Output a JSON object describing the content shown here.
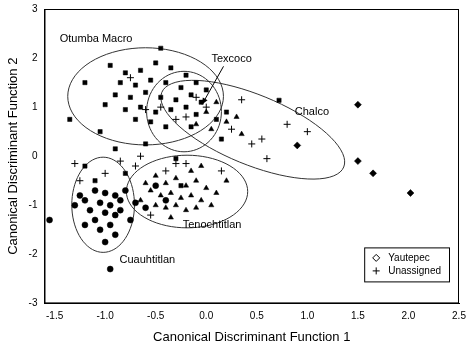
{
  "chart_data": {
    "type": "scatter",
    "x_label": "Canonical Discriminant Function 1",
    "y_label": "Canonical Discriminant Function 2",
    "xlim": [
      -1.6,
      2.5
    ],
    "ylim": [
      -3,
      3
    ],
    "xticks": [
      -1.5,
      {
        "value": -1,
        "label": "-1.0"
      },
      -0.5,
      {
        "value": 0,
        "label": "0.0"
      },
      0.5,
      {
        "value": 1,
        "label": "1.0"
      },
      1.5,
      {
        "value": 2,
        "label": "2.0"
      },
      2.5
    ],
    "yticks": [
      -3,
      -2,
      -1,
      0,
      1,
      2,
      3
    ],
    "grid": false,
    "legend": "lower right",
    "series": [
      {
        "marker": "square",
        "color": "#000000",
        "values": [
          [
            -0.95,
            1.85
          ],
          [
            -0.8,
            1.7
          ],
          [
            -0.65,
            1.75
          ],
          [
            -0.5,
            1.9
          ],
          [
            -0.35,
            1.8
          ],
          [
            -0.2,
            1.65
          ],
          [
            -0.85,
            1.5
          ],
          [
            -0.7,
            1.45
          ],
          [
            -0.55,
            1.55
          ],
          [
            -0.4,
            1.5
          ],
          [
            -0.25,
            1.4
          ],
          [
            -0.1,
            1.5
          ],
          [
            0.0,
            1.35
          ],
          [
            -0.9,
            1.25
          ],
          [
            -0.75,
            1.2
          ],
          [
            -0.6,
            1.3
          ],
          [
            -0.45,
            1.2
          ],
          [
            -0.3,
            1.15
          ],
          [
            -0.15,
            1.25
          ],
          [
            -0.05,
            1.1
          ],
          [
            -1.0,
            1.05
          ],
          [
            -0.8,
            0.95
          ],
          [
            -0.65,
            1.0
          ],
          [
            -0.5,
            0.9
          ],
          [
            -0.35,
            0.95
          ],
          [
            -0.2,
            1.0
          ],
          [
            -0.1,
            0.85
          ],
          [
            -0.7,
            0.75
          ],
          [
            -0.55,
            0.7
          ],
          [
            -0.4,
            0.6
          ],
          [
            -0.15,
            0.6
          ],
          [
            0.1,
            0.75
          ],
          [
            0.2,
            0.9
          ],
          [
            -1.35,
            0.75
          ],
          [
            -1.05,
            0.5
          ],
          [
            -0.9,
            0.15
          ],
          [
            -1.2,
            -0.2
          ],
          [
            -0.6,
            0.25
          ],
          [
            -0.3,
            -0.05
          ],
          [
            -1.1,
            -0.5
          ],
          [
            -0.8,
            -0.35
          ],
          [
            0.72,
            1.14
          ],
          [
            -1.2,
            1.5
          ],
          [
            -0.45,
            2.2
          ],
          [
            0.15,
            0.35
          ],
          [
            -0.9,
            -1.2
          ],
          [
            -0.25,
            -0.6
          ]
        ]
      },
      {
        "marker": "triangle",
        "color": "#000000",
        "values": [
          [
            -0.5,
            -0.4
          ],
          [
            -0.4,
            -0.55
          ],
          [
            -0.3,
            -0.45
          ],
          [
            -0.2,
            -0.6
          ],
          [
            -0.1,
            -0.5
          ],
          [
            0.0,
            -0.65
          ],
          [
            0.1,
            -0.75
          ],
          [
            -0.55,
            -0.7
          ],
          [
            -0.45,
            -0.8
          ],
          [
            -0.35,
            -0.75
          ],
          [
            -0.25,
            -0.85
          ],
          [
            -0.15,
            -0.8
          ],
          [
            -0.05,
            -0.9
          ],
          [
            -0.5,
            -1.0
          ],
          [
            -0.4,
            -1.05
          ],
          [
            -0.3,
            -1.0
          ],
          [
            -0.2,
            -1.1
          ],
          [
            -0.1,
            -1.05
          ],
          [
            0.05,
            -1.0
          ],
          [
            -0.35,
            -1.25
          ],
          [
            -0.6,
            -0.55
          ],
          [
            -0.65,
            -0.9
          ],
          [
            0.2,
            -0.5
          ],
          [
            -0.15,
            -0.3
          ],
          [
            -0.05,
            -0.2
          ],
          [
            0.0,
            0.9
          ],
          [
            0.1,
            1.1
          ],
          [
            0.2,
            0.7
          ],
          [
            0.3,
            0.8
          ],
          [
            -0.1,
            0.65
          ],
          [
            0.05,
            0.55
          ],
          [
            0.35,
            0.45
          ]
        ]
      },
      {
        "marker": "circle",
        "color": "#000000",
        "values": [
          [
            -1.1,
            -0.7
          ],
          [
            -1.0,
            -0.75
          ],
          [
            -0.9,
            -0.8
          ],
          [
            -1.2,
            -0.9
          ],
          [
            -1.05,
            -0.95
          ],
          [
            -0.95,
            -1.0
          ],
          [
            -0.85,
            -0.9
          ],
          [
            -1.15,
            -1.1
          ],
          [
            -1.0,
            -1.15
          ],
          [
            -0.9,
            -1.2
          ],
          [
            -1.1,
            -1.3
          ],
          [
            -0.95,
            -1.4
          ],
          [
            -0.85,
            -1.1
          ],
          [
            -1.05,
            -1.5
          ],
          [
            -0.9,
            -1.6
          ],
          [
            -1.0,
            -1.75
          ],
          [
            -1.25,
            -0.8
          ],
          [
            -0.8,
            -0.7
          ],
          [
            -1.3,
            -1.0
          ],
          [
            -0.75,
            -1.3
          ],
          [
            -1.55,
            -1.3
          ],
          [
            -0.95,
            -2.3
          ],
          [
            -1.2,
            -1.4
          ],
          [
            -0.7,
            -0.95
          ],
          [
            -0.6,
            -1.05
          ],
          [
            -0.5,
            -0.6
          ],
          [
            -0.4,
            -0.9
          ]
        ]
      },
      {
        "name": "Yautepec",
        "marker": "diamond",
        "color": "#000000",
        "values": [
          [
            1.5,
            1.05
          ],
          [
            1.5,
            -0.1
          ],
          [
            1.65,
            -0.35
          ],
          [
            2.02,
            -0.75
          ],
          [
            0.9,
            0.22
          ]
        ]
      },
      {
        "name": "Unassigned",
        "marker": "plus",
        "color": "#000000",
        "values": [
          [
            -0.75,
            1.6
          ],
          [
            -0.6,
            0.95
          ],
          [
            -0.45,
            1.0
          ],
          [
            -0.3,
            0.75
          ],
          [
            -0.1,
            1.2
          ],
          [
            0.0,
            1.0
          ],
          [
            -0.2,
            0.8
          ],
          [
            0.35,
            1.15
          ],
          [
            0.55,
            0.35
          ],
          [
            0.6,
            -0.05
          ],
          [
            0.45,
            0.25
          ],
          [
            1.0,
            0.5
          ],
          [
            0.8,
            0.65
          ],
          [
            0.25,
            0.55
          ],
          [
            -0.2,
            -0.15
          ],
          [
            -0.7,
            -0.2
          ],
          [
            -1.25,
            -0.5
          ],
          [
            -0.65,
            0.0
          ],
          [
            -0.4,
            -0.3
          ],
          [
            -0.85,
            -0.1
          ],
          [
            -1.0,
            -0.35
          ],
          [
            -0.3,
            -0.15
          ],
          [
            0.15,
            -0.3
          ],
          [
            -0.55,
            -1.2
          ],
          [
            -1.3,
            -0.15
          ]
        ]
      }
    ],
    "ellipses": [
      {
        "label": "Otumba Macro",
        "center": [
          -0.6,
          1.22
        ],
        "axis1": [
          0.77,
          0
        ],
        "axis2": [
          0,
          0.99
        ]
      },
      {
        "label": "Texcoco",
        "center": [
          -0.22,
          0.91
        ],
        "axis1": [
          0.37,
          0
        ],
        "axis2": [
          0,
          0.82
        ]
      },
      {
        "label": "Chalco",
        "center": [
          0.46,
          0.54
        ],
        "axis1": [
          0.9,
          -0.76
        ],
        "axis2": [
          0.13,
          0.66
        ]
      },
      {
        "label": "Tenochtitlan",
        "center": [
          -0.19,
          -0.72
        ],
        "axis1": [
          0.6,
          0
        ],
        "axis2": [
          0,
          0.74
        ]
      },
      {
        "label": "Cuauhtitlan",
        "center": [
          -1.02,
          -0.99
        ],
        "axis1": [
          0.31,
          0
        ],
        "axis2": [
          0,
          0.97
        ]
      }
    ]
  }
}
